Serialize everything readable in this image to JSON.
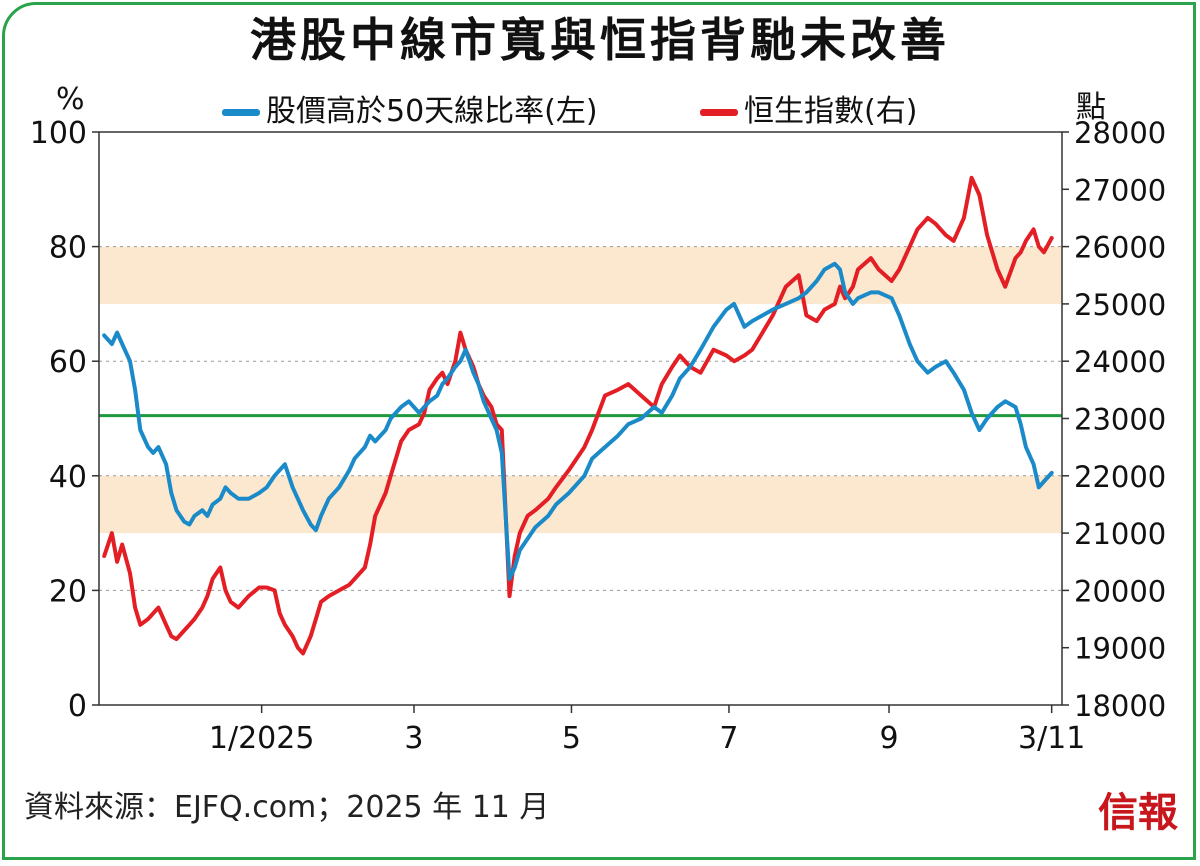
{
  "title": "港股中線市寬與恒指背馳未改善",
  "left_unit": "%",
  "right_unit": "點",
  "source": "資料來源：EJFQ.com；2025 年 11 月",
  "logo": "信報",
  "colors": {
    "breadth": "#1b8ac8",
    "hsi": "#e31e24",
    "band": "#fbe8cf",
    "ref_line": "#1e9a3c",
    "grid": "#999999",
    "frame": "#2aa34a"
  },
  "chart_data": {
    "type": "line",
    "title": "港股中線市寬與恒指背馳未改善",
    "x_ticks": [
      "1/2025",
      "3",
      "5",
      "7",
      "9",
      "3/11"
    ],
    "y_left": {
      "label": "%",
      "range": [
        0,
        100
      ],
      "ticks": [
        0,
        20,
        40,
        60,
        80,
        100
      ]
    },
    "y_right": {
      "label": "點",
      "range": [
        18000,
        28000
      ],
      "ticks": [
        18000,
        19000,
        20000,
        21000,
        22000,
        23000,
        24000,
        25000,
        26000,
        27000,
        28000
      ]
    },
    "shaded_bands_left": [
      [
        30,
        40
      ],
      [
        70,
        80
      ]
    ],
    "reference_line_left": 50.5,
    "grid": "dashed horizontal",
    "legend_position": "top",
    "series": [
      {
        "name": "股價高於50天線比率(左)",
        "axis": "left",
        "points": [
          [
            "2024-11-01",
            64.5
          ],
          [
            "2024-11-04",
            63
          ],
          [
            "2024-11-06",
            65
          ],
          [
            "2024-11-08",
            63
          ],
          [
            "2024-11-11",
            60
          ],
          [
            "2024-11-13",
            55
          ],
          [
            "2024-11-15",
            48
          ],
          [
            "2024-11-18",
            45
          ],
          [
            "2024-11-20",
            44
          ],
          [
            "2024-11-22",
            45
          ],
          [
            "2024-11-25",
            42
          ],
          [
            "2024-11-27",
            37
          ],
          [
            "2024-11-29",
            34
          ],
          [
            "2024-12-02",
            32
          ],
          [
            "2024-12-04",
            31.5
          ],
          [
            "2024-12-06",
            33
          ],
          [
            "2024-12-09",
            34
          ],
          [
            "2024-12-11",
            33
          ],
          [
            "2024-12-13",
            35
          ],
          [
            "2024-12-16",
            36
          ],
          [
            "2024-12-18",
            38
          ],
          [
            "2024-12-20",
            37
          ],
          [
            "2024-12-23",
            36
          ],
          [
            "2024-12-27",
            36
          ],
          [
            "2024-12-31",
            37
          ],
          [
            "2025-01-03",
            38
          ],
          [
            "2025-01-06",
            40
          ],
          [
            "2025-01-08",
            41
          ],
          [
            "2025-01-10",
            42
          ],
          [
            "2025-01-13",
            38
          ],
          [
            "2025-01-15",
            36
          ],
          [
            "2025-01-17",
            34
          ],
          [
            "2025-01-20",
            31.5
          ],
          [
            "2025-01-22",
            30.5
          ],
          [
            "2025-01-24",
            33
          ],
          [
            "2025-01-27",
            36
          ],
          [
            "2025-01-31",
            38
          ],
          [
            "2025-02-04",
            41
          ],
          [
            "2025-02-06",
            43
          ],
          [
            "2025-02-10",
            45
          ],
          [
            "2025-02-12",
            47
          ],
          [
            "2025-02-14",
            46
          ],
          [
            "2025-02-18",
            48
          ],
          [
            "2025-02-20",
            50
          ],
          [
            "2025-02-24",
            52
          ],
          [
            "2025-02-27",
            53
          ],
          [
            "2025-03-03",
            51
          ],
          [
            "2025-03-05",
            52
          ],
          [
            "2025-03-07",
            53
          ],
          [
            "2025-03-10",
            54
          ],
          [
            "2025-03-12",
            56
          ],
          [
            "2025-03-14",
            57
          ],
          [
            "2025-03-17",
            59
          ],
          [
            "2025-03-19",
            60
          ],
          [
            "2025-03-21",
            62
          ],
          [
            "2025-03-24",
            58
          ],
          [
            "2025-03-26",
            56
          ],
          [
            "2025-03-28",
            53
          ],
          [
            "2025-03-31",
            50
          ],
          [
            "2025-04-02",
            48
          ],
          [
            "2025-04-04",
            44
          ],
          [
            "2025-04-07",
            22
          ],
          [
            "2025-04-09",
            24
          ],
          [
            "2025-04-11",
            27
          ],
          [
            "2025-04-14",
            29
          ],
          [
            "2025-04-17",
            31
          ],
          [
            "2025-04-22",
            33
          ],
          [
            "2025-04-25",
            35
          ],
          [
            "2025-04-30",
            37
          ],
          [
            "2025-05-06",
            40
          ],
          [
            "2025-05-09",
            43
          ],
          [
            "2025-05-14",
            45
          ],
          [
            "2025-05-19",
            47
          ],
          [
            "2025-05-23",
            49
          ],
          [
            "2025-05-28",
            50
          ],
          [
            "2025-06-02",
            52
          ],
          [
            "2025-06-05",
            51
          ],
          [
            "2025-06-09",
            54
          ],
          [
            "2025-06-12",
            57
          ],
          [
            "2025-06-16",
            59
          ],
          [
            "2025-06-20",
            62
          ],
          [
            "2025-06-25",
            66
          ],
          [
            "2025-06-30",
            69
          ],
          [
            "2025-07-03",
            70
          ],
          [
            "2025-07-07",
            66
          ],
          [
            "2025-07-10",
            67
          ],
          [
            "2025-07-14",
            68
          ],
          [
            "2025-07-18",
            69
          ],
          [
            "2025-07-23",
            70
          ],
          [
            "2025-07-28",
            71
          ],
          [
            "2025-07-31",
            72
          ],
          [
            "2025-08-04",
            74
          ],
          [
            "2025-08-07",
            76
          ],
          [
            "2025-08-11",
            77
          ],
          [
            "2025-08-13",
            76
          ],
          [
            "2025-08-15",
            72
          ],
          [
            "2025-08-18",
            70
          ],
          [
            "2025-08-20",
            71
          ],
          [
            "2025-08-25",
            72
          ],
          [
            "2025-08-28",
            72
          ],
          [
            "2025-09-02",
            71
          ],
          [
            "2025-09-05",
            68
          ],
          [
            "2025-09-09",
            63
          ],
          [
            "2025-09-12",
            60
          ],
          [
            "2025-09-16",
            58
          ],
          [
            "2025-09-19",
            59
          ],
          [
            "2025-09-23",
            60
          ],
          [
            "2025-09-26",
            58
          ],
          [
            "2025-09-30",
            55
          ],
          [
            "2025-10-03",
            51
          ],
          [
            "2025-10-06",
            48
          ],
          [
            "2025-10-09",
            50
          ],
          [
            "2025-10-13",
            52
          ],
          [
            "2025-10-16",
            53
          ],
          [
            "2025-10-20",
            52
          ],
          [
            "2025-10-22",
            49
          ],
          [
            "2025-10-24",
            45
          ],
          [
            "2025-10-27",
            42
          ],
          [
            "2025-10-29",
            38
          ],
          [
            "2025-10-31",
            39
          ],
          [
            "2025-11-03",
            40.5
          ]
        ]
      },
      {
        "name": "恒生指數(右)",
        "axis": "right",
        "points": [
          [
            "2024-11-01",
            20600
          ],
          [
            "2024-11-04",
            21000
          ],
          [
            "2024-11-06",
            20500
          ],
          [
            "2024-11-08",
            20800
          ],
          [
            "2024-11-11",
            20300
          ],
          [
            "2024-11-13",
            19700
          ],
          [
            "2024-11-15",
            19400
          ],
          [
            "2024-11-18",
            19500
          ],
          [
            "2024-11-20",
            19600
          ],
          [
            "2024-11-22",
            19700
          ],
          [
            "2024-11-25",
            19400
          ],
          [
            "2024-11-27",
            19200
          ],
          [
            "2024-11-29",
            19150
          ],
          [
            "2024-12-02",
            19300
          ],
          [
            "2024-12-04",
            19400
          ],
          [
            "2024-12-06",
            19500
          ],
          [
            "2024-12-09",
            19700
          ],
          [
            "2024-12-11",
            19900
          ],
          [
            "2024-12-13",
            20200
          ],
          [
            "2024-12-16",
            20400
          ],
          [
            "2024-12-18",
            20000
          ],
          [
            "2024-12-20",
            19800
          ],
          [
            "2024-12-23",
            19700
          ],
          [
            "2024-12-27",
            19900
          ],
          [
            "2024-12-31",
            20050
          ],
          [
            "2025-01-03",
            20050
          ],
          [
            "2025-01-06",
            20000
          ],
          [
            "2025-01-08",
            19600
          ],
          [
            "2025-01-10",
            19400
          ],
          [
            "2025-01-13",
            19200
          ],
          [
            "2025-01-15",
            19000
          ],
          [
            "2025-01-17",
            18900
          ],
          [
            "2025-01-20",
            19200
          ],
          [
            "2025-01-22",
            19500
          ],
          [
            "2025-01-24",
            19800
          ],
          [
            "2025-01-27",
            19900
          ],
          [
            "2025-01-31",
            20000
          ],
          [
            "2025-02-04",
            20100
          ],
          [
            "2025-02-06",
            20200
          ],
          [
            "2025-02-10",
            20400
          ],
          [
            "2025-02-12",
            20800
          ],
          [
            "2025-02-14",
            21300
          ],
          [
            "2025-02-18",
            21700
          ],
          [
            "2025-02-20",
            22000
          ],
          [
            "2025-02-24",
            22600
          ],
          [
            "2025-02-27",
            22800
          ],
          [
            "2025-03-03",
            22900
          ],
          [
            "2025-03-05",
            23100
          ],
          [
            "2025-03-07",
            23500
          ],
          [
            "2025-03-10",
            23700
          ],
          [
            "2025-03-12",
            23800
          ],
          [
            "2025-03-14",
            23600
          ],
          [
            "2025-03-17",
            24000
          ],
          [
            "2025-03-19",
            24500
          ],
          [
            "2025-03-21",
            24200
          ],
          [
            "2025-03-24",
            23900
          ],
          [
            "2025-03-26",
            23600
          ],
          [
            "2025-03-28",
            23400
          ],
          [
            "2025-03-31",
            23200
          ],
          [
            "2025-04-02",
            22900
          ],
          [
            "2025-04-04",
            22800
          ],
          [
            "2025-04-07",
            19900
          ],
          [
            "2025-04-09",
            20600
          ],
          [
            "2025-04-11",
            21000
          ],
          [
            "2025-04-14",
            21300
          ],
          [
            "2025-04-17",
            21400
          ],
          [
            "2025-04-22",
            21600
          ],
          [
            "2025-04-25",
            21800
          ],
          [
            "2025-04-30",
            22100
          ],
          [
            "2025-05-06",
            22500
          ],
          [
            "2025-05-09",
            22800
          ],
          [
            "2025-05-14",
            23400
          ],
          [
            "2025-05-19",
            23500
          ],
          [
            "2025-05-23",
            23600
          ],
          [
            "2025-05-28",
            23400
          ],
          [
            "2025-06-02",
            23200
          ],
          [
            "2025-06-05",
            23600
          ],
          [
            "2025-06-09",
            23900
          ],
          [
            "2025-06-12",
            24100
          ],
          [
            "2025-06-16",
            23900
          ],
          [
            "2025-06-20",
            23800
          ],
          [
            "2025-06-25",
            24200
          ],
          [
            "2025-06-30",
            24100
          ],
          [
            "2025-07-03",
            24000
          ],
          [
            "2025-07-07",
            24100
          ],
          [
            "2025-07-10",
            24200
          ],
          [
            "2025-07-14",
            24500
          ],
          [
            "2025-07-18",
            24800
          ],
          [
            "2025-07-23",
            25300
          ],
          [
            "2025-07-28",
            25500
          ],
          [
            "2025-07-31",
            24800
          ],
          [
            "2025-08-04",
            24700
          ],
          [
            "2025-08-07",
            24900
          ],
          [
            "2025-08-11",
            25000
          ],
          [
            "2025-08-13",
            25300
          ],
          [
            "2025-08-15",
            25100
          ],
          [
            "2025-08-18",
            25300
          ],
          [
            "2025-08-20",
            25600
          ],
          [
            "2025-08-25",
            25800
          ],
          [
            "2025-08-28",
            25600
          ],
          [
            "2025-09-02",
            25400
          ],
          [
            "2025-09-05",
            25600
          ],
          [
            "2025-09-09",
            26000
          ],
          [
            "2025-09-12",
            26300
          ],
          [
            "2025-09-16",
            26500
          ],
          [
            "2025-09-19",
            26400
          ],
          [
            "2025-09-23",
            26200
          ],
          [
            "2025-09-26",
            26100
          ],
          [
            "2025-09-30",
            26500
          ],
          [
            "2025-10-03",
            27200
          ],
          [
            "2025-10-06",
            26900
          ],
          [
            "2025-10-09",
            26200
          ],
          [
            "2025-10-13",
            25600
          ],
          [
            "2025-10-16",
            25300
          ],
          [
            "2025-10-20",
            25800
          ],
          [
            "2025-10-22",
            25900
          ],
          [
            "2025-10-24",
            26100
          ],
          [
            "2025-10-27",
            26300
          ],
          [
            "2025-10-29",
            26000
          ],
          [
            "2025-10-31",
            25900
          ],
          [
            "2025-11-03",
            26150
          ]
        ]
      }
    ]
  }
}
